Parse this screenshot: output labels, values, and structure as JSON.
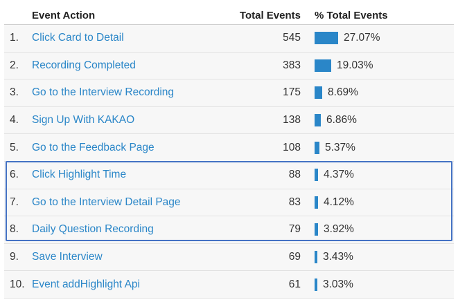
{
  "header": {
    "action": "Event Action",
    "total": "Total Events",
    "pct": "% Total Events"
  },
  "rows": [
    {
      "num": "1.",
      "action": "Click Card to Detail",
      "total": "545",
      "pct_label": "27.07%",
      "pct": 27.07
    },
    {
      "num": "2.",
      "action": "Recording Completed",
      "total": "383",
      "pct_label": "19.03%",
      "pct": 19.03
    },
    {
      "num": "3.",
      "action": "Go to the Interview Recording",
      "total": "175",
      "pct_label": "8.69%",
      "pct": 8.69
    },
    {
      "num": "4.",
      "action": "Sign Up With KAKAO",
      "total": "138",
      "pct_label": "6.86%",
      "pct": 6.86
    },
    {
      "num": "5.",
      "action": "Go to the Feedback Page",
      "total": "108",
      "pct_label": "5.37%",
      "pct": 5.37
    },
    {
      "num": "6.",
      "action": "Click Highlight Time",
      "total": "88",
      "pct_label": "4.37%",
      "pct": 4.37
    },
    {
      "num": "7.",
      "action": "Go to the Interview Detail Page",
      "total": "83",
      "pct_label": "4.12%",
      "pct": 4.12
    },
    {
      "num": "8.",
      "action": "Daily Question Recording",
      "total": "79",
      "pct_label": "3.92%",
      "pct": 3.92
    },
    {
      "num": "9.",
      "action": "Save Interview",
      "total": "69",
      "pct_label": "3.43%",
      "pct": 3.43
    },
    {
      "num": "10.",
      "action": "Event addHighlight Api",
      "total": "61",
      "pct_label": "3.03%",
      "pct": 3.03
    }
  ],
  "colors": {
    "link": "#2a86c8",
    "bar": "#2a86c8",
    "highlight_border": "#4472c4"
  }
}
